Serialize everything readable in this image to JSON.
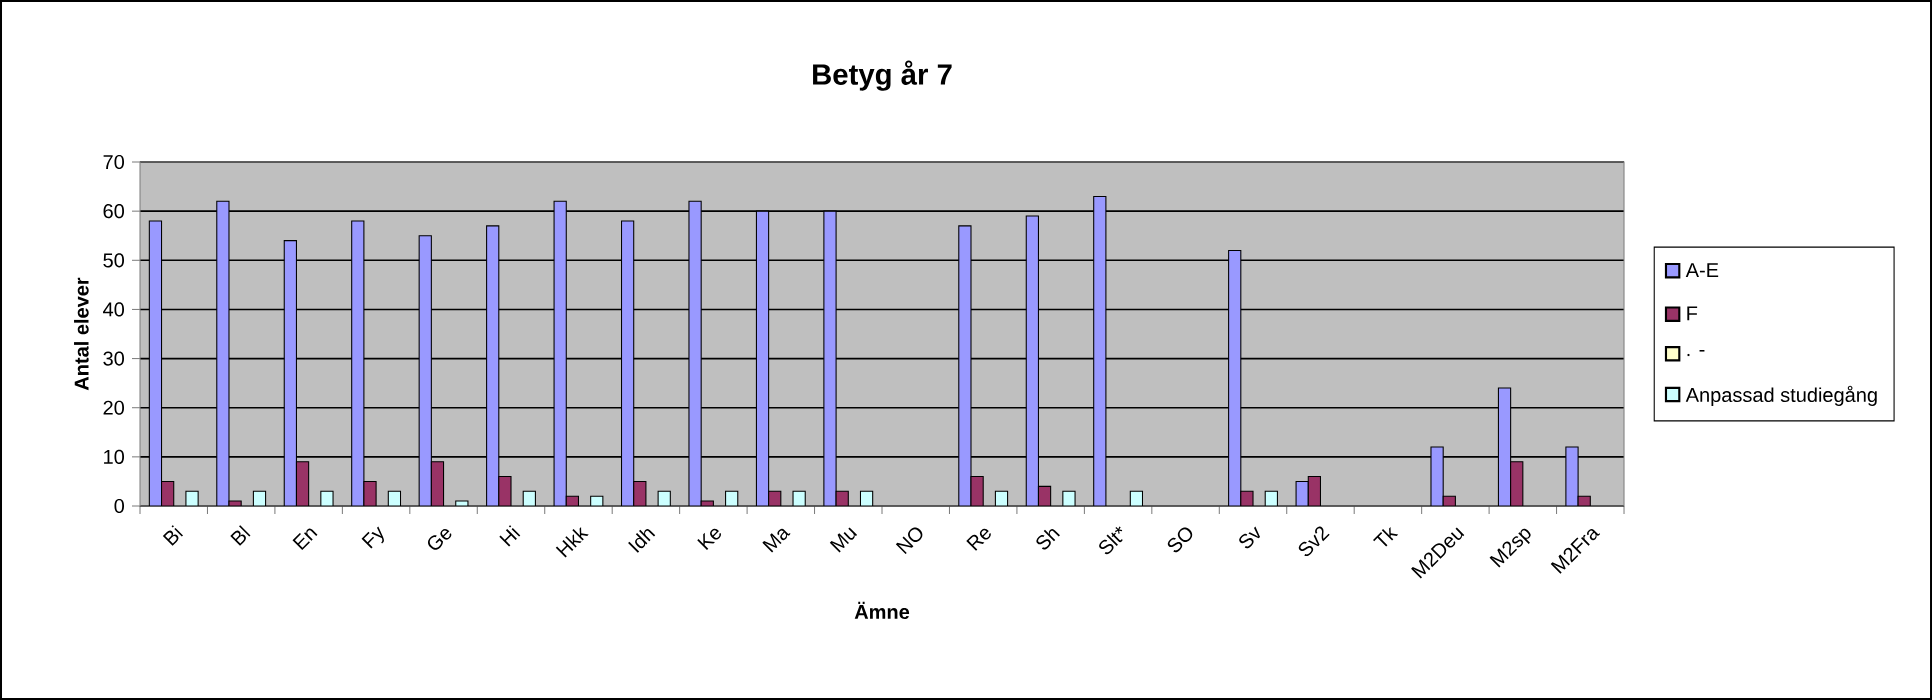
{
  "chart_data": {
    "type": "bar",
    "title": "Betyg år 7",
    "xlabel": "Ämne",
    "ylabel": "Antal elever",
    "categories": [
      "Bi",
      "Bl",
      "En",
      "Fy",
      "Ge",
      "Hi",
      "Hkk",
      "Idh",
      "Ke",
      "Ma",
      "Mu",
      "NO",
      "Re",
      "Sh",
      "Slt*",
      "SO",
      "Sv",
      "Sv2",
      "Tk",
      "M2Deu",
      "M2sp",
      "M2Fra"
    ],
    "series": [
      {
        "name": "A-E",
        "color": "#9999ff",
        "values": [
          58,
          62,
          54,
          58,
          55,
          57,
          62,
          58,
          62,
          60,
          60,
          null,
          57,
          59,
          63,
          null,
          52,
          5,
          null,
          12,
          24,
          12
        ]
      },
      {
        "name": "F",
        "color": "#993366",
        "values": [
          5,
          1,
          9,
          5,
          9,
          6,
          2,
          5,
          1,
          3,
          3,
          null,
          6,
          4,
          null,
          null,
          3,
          6,
          null,
          2,
          9,
          2
        ]
      },
      {
        "name": ". -",
        "color": "#ffffcc",
        "values": [
          null,
          null,
          null,
          null,
          null,
          null,
          null,
          null,
          null,
          null,
          null,
          null,
          null,
          null,
          null,
          null,
          null,
          null,
          null,
          null,
          null,
          null
        ]
      },
      {
        "name": "Anpassad studiegång",
        "color": "#ccffff",
        "values": [
          3,
          3,
          3,
          3,
          1,
          3,
          2,
          3,
          3,
          3,
          3,
          null,
          3,
          3,
          3,
          null,
          3,
          null,
          null,
          null,
          null,
          null
        ]
      }
    ],
    "ylim": [
      0,
      70
    ],
    "yticks": [
      0,
      10,
      20,
      30,
      40,
      50,
      60,
      70
    ],
    "grid": "y",
    "legend": "right"
  }
}
